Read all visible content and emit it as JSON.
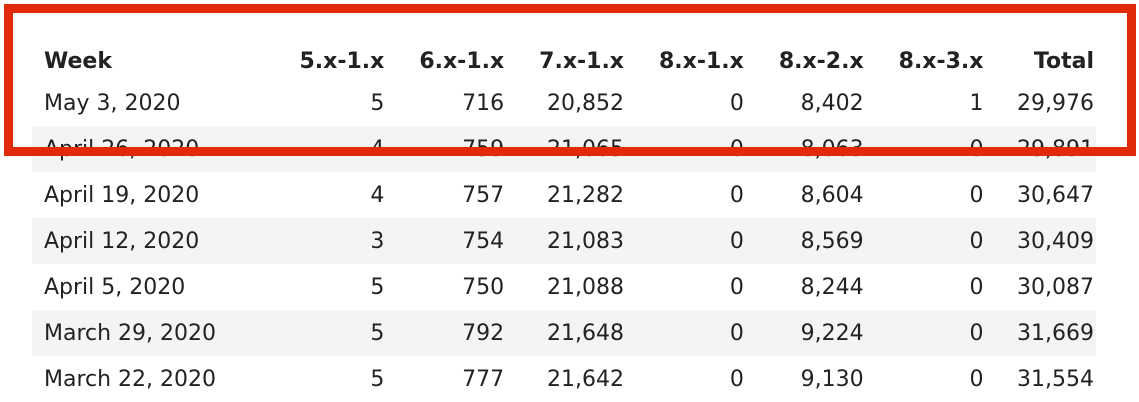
{
  "table": {
    "headers": [
      "Week",
      "5.x-1.x",
      "6.x-1.x",
      "7.x-1.x",
      "8.x-1.x",
      "8.x-2.x",
      "8.x-3.x",
      "Total"
    ],
    "rows": [
      [
        "May 3, 2020",
        "5",
        "716",
        "20,852",
        "0",
        "8,402",
        "1",
        "29,976"
      ],
      [
        "April 26, 2020",
        "4",
        "759",
        "21,065",
        "0",
        "8,063",
        "0",
        "29,891"
      ],
      [
        "April 19, 2020",
        "4",
        "757",
        "21,282",
        "0",
        "8,604",
        "0",
        "30,647"
      ],
      [
        "April 12, 2020",
        "3",
        "754",
        "21,083",
        "0",
        "8,569",
        "0",
        "30,409"
      ],
      [
        "April 5, 2020",
        "5",
        "750",
        "21,088",
        "0",
        "8,244",
        "0",
        "30,087"
      ],
      [
        "March 29, 2020",
        "5",
        "792",
        "21,648",
        "0",
        "9,224",
        "0",
        "31,669"
      ],
      [
        "March 22, 2020",
        "5",
        "777",
        "21,642",
        "0",
        "9,130",
        "0",
        "31,554"
      ]
    ]
  },
  "highlight_color": "#e02a0a"
}
